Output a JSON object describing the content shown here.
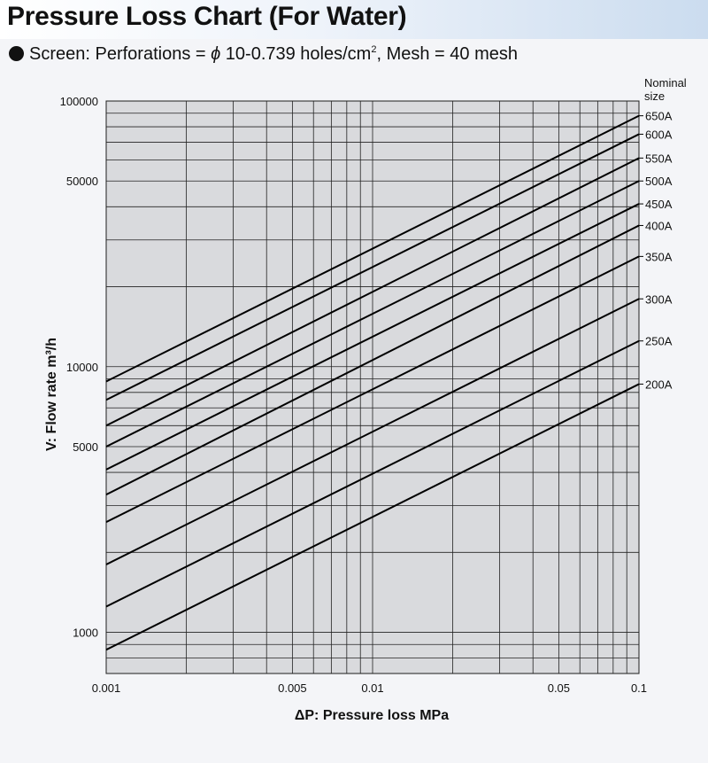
{
  "header": {
    "title": "Pressure Loss Chart (For Water)",
    "subtitle_prefix": "Screen: Perforations = ",
    "phi_symbol": "ϕ",
    "subtitle_mid": " 10-0.739 holes/cm",
    "subtitle_sup": "2",
    "subtitle_suffix": ", Mesh = 40 mesh"
  },
  "chart_data": {
    "type": "line",
    "xscale": "log",
    "yscale": "log",
    "xlabel": "ΔP: Pressure loss MPa",
    "ylabel": "V: Flow rate m³/h",
    "xlim": [
      0.001,
      0.1
    ],
    "ylim": [
      700,
      100000
    ],
    "grid": true,
    "x_ticks": [
      {
        "value": 0.001,
        "label": "0.001"
      },
      {
        "value": 0.005,
        "label": "0.005"
      },
      {
        "value": 0.01,
        "label": "0.01"
      },
      {
        "value": 0.05,
        "label": "0.05"
      },
      {
        "value": 0.1,
        "label": "0.1"
      }
    ],
    "y_ticks": [
      {
        "value": 1000,
        "label": "1000"
      },
      {
        "value": 5000,
        "label": "5000"
      },
      {
        "value": 10000,
        "label": "10000"
      },
      {
        "value": 50000,
        "label": "50000"
      },
      {
        "value": 100000,
        "label": "100000"
      }
    ],
    "legend_title": [
      "Nominal",
      "size"
    ],
    "series": [
      {
        "name": "650A",
        "x": [
          0.001,
          0.1
        ],
        "y": [
          8800,
          88000
        ]
      },
      {
        "name": "600A",
        "x": [
          0.001,
          0.1
        ],
        "y": [
          7500,
          75000
        ]
      },
      {
        "name": "550A",
        "x": [
          0.001,
          0.1
        ],
        "y": [
          6000,
          61000
        ]
      },
      {
        "name": "500A",
        "x": [
          0.001,
          0.1
        ],
        "y": [
          5000,
          50000
        ]
      },
      {
        "name": "450A",
        "x": [
          0.001,
          0.1
        ],
        "y": [
          4100,
          41000
        ]
      },
      {
        "name": "400A",
        "x": [
          0.001,
          0.1
        ],
        "y": [
          3300,
          34000
        ]
      },
      {
        "name": "350A",
        "x": [
          0.001,
          0.1
        ],
        "y": [
          2600,
          26000
        ]
      },
      {
        "name": "300A",
        "x": [
          0.001,
          0.1
        ],
        "y": [
          1800,
          18000
        ]
      },
      {
        "name": "250A",
        "x": [
          0.001,
          0.1
        ],
        "y": [
          1250,
          12500
        ]
      },
      {
        "name": "200A",
        "x": [
          0.001,
          0.1
        ],
        "y": [
          860,
          8600
        ]
      }
    ]
  }
}
